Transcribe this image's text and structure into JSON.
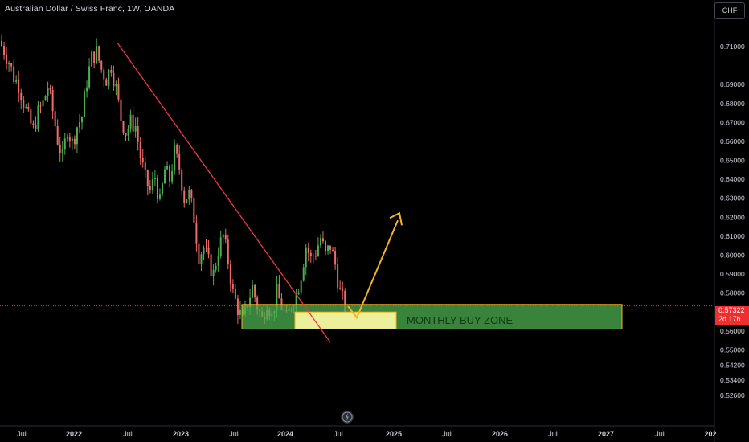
{
  "header": {
    "title": "Australian Dollar / Swiss Franc, 1W, OANDA",
    "currency": "CHF"
  },
  "price": {
    "last": "0.57322",
    "countdown": "2d 17h"
  },
  "annotation": {
    "zone_label": "MONTHLY BUY ZONE"
  },
  "colors": {
    "background": "#000000",
    "up_candle": "#4caf50",
    "down_candle": "#f06a6a",
    "trendline": "#f23645",
    "zone_fill": "#4caf50",
    "small_zone_fill": "#f5f5a0",
    "projection_arrow": "#f5b324",
    "price_tag": "#ef2f2f"
  },
  "icons": [
    "tradingview-logo-icon"
  ],
  "chart_data": {
    "type": "candlestick",
    "title": "Australian Dollar / Swiss Franc, 1W, OANDA",
    "ylim": [
      0.522,
      0.722
    ],
    "y_ticks": [
      {
        "value": 0.71,
        "label": "0.71000"
      },
      {
        "value": 0.69,
        "label": "0.69000"
      },
      {
        "value": 0.68,
        "label": "0.68000"
      },
      {
        "value": 0.67,
        "label": "0.67000"
      },
      {
        "value": 0.66,
        "label": "0.66000"
      },
      {
        "value": 0.65,
        "label": "0.65000"
      },
      {
        "value": 0.64,
        "label": "0.64000"
      },
      {
        "value": 0.63,
        "label": "0.63000"
      },
      {
        "value": 0.62,
        "label": "0.62000"
      },
      {
        "value": 0.61,
        "label": "0.61000"
      },
      {
        "value": 0.6,
        "label": "0.60000"
      },
      {
        "value": 0.59,
        "label": "0.59000"
      },
      {
        "value": 0.58,
        "label": "0.58000"
      },
      {
        "value": 0.56,
        "label": "0.56000"
      },
      {
        "value": 0.55,
        "label": "0.55000"
      },
      {
        "value": 0.542,
        "label": "0.54200"
      },
      {
        "value": 0.534,
        "label": "0.53400"
      },
      {
        "value": 0.526,
        "label": "0.52600"
      }
    ],
    "x_ticks": [
      {
        "label": "Jul",
        "bold": false
      },
      {
        "label": "2022",
        "bold": true
      },
      {
        "label": "Jul",
        "bold": false
      },
      {
        "label": "2023",
        "bold": true
      },
      {
        "label": "Jul",
        "bold": false
      },
      {
        "label": "2024",
        "bold": true
      },
      {
        "label": "Jul",
        "bold": false
      },
      {
        "label": "2025",
        "bold": true
      },
      {
        "label": "Jul",
        "bold": false
      },
      {
        "label": "2026",
        "bold": true
      },
      {
        "label": "Jul",
        "bold": false
      },
      {
        "label": "2027",
        "bold": true
      },
      {
        "label": "Jul",
        "bold": false
      },
      {
        "label": "202",
        "bold": true
      }
    ],
    "price_path": [
      0.713,
      0.708,
      0.702,
      0.694,
      0.69,
      0.681,
      0.672,
      0.666,
      0.675,
      0.68,
      0.689,
      0.676,
      0.661,
      0.651,
      0.667,
      0.659,
      0.668,
      0.673,
      0.692,
      0.704,
      0.707,
      0.698,
      0.693,
      0.7,
      0.688,
      0.672,
      0.665,
      0.67,
      0.668,
      0.652,
      0.64,
      0.634,
      0.641,
      0.627,
      0.645,
      0.64,
      0.654,
      0.646,
      0.63,
      0.632,
      0.62,
      0.6,
      0.604,
      0.596,
      0.59,
      0.603,
      0.61,
      0.597,
      0.58,
      0.572,
      0.565,
      0.575,
      0.583,
      0.573,
      0.566,
      0.576,
      0.568,
      0.58,
      0.573,
      0.566,
      0.574,
      0.579,
      0.59,
      0.605,
      0.598,
      0.602,
      0.609,
      0.6,
      0.605,
      0.595,
      0.58,
      0.573
    ],
    "trendline": {
      "from": {
        "period": "2022 Apr",
        "value": 0.712
      },
      "to": {
        "period": "2024 Jun",
        "value": 0.554
      }
    },
    "zones": [
      {
        "label": "MONTHLY BUY ZONE",
        "from_period": "2023 Jul",
        "to_period": "2027 Jan",
        "top": 0.574,
        "bottom": 0.561,
        "color": "#4caf50"
      },
      {
        "from_period": "2024 Jan",
        "to_period": "2024 Dec",
        "top": 0.569,
        "bottom": 0.561,
        "color": "#f5f5a0"
      }
    ],
    "projection": {
      "points": [
        0.573,
        0.567,
        0.62
      ],
      "color": "#f5b324"
    },
    "last_price": 0.57322
  }
}
